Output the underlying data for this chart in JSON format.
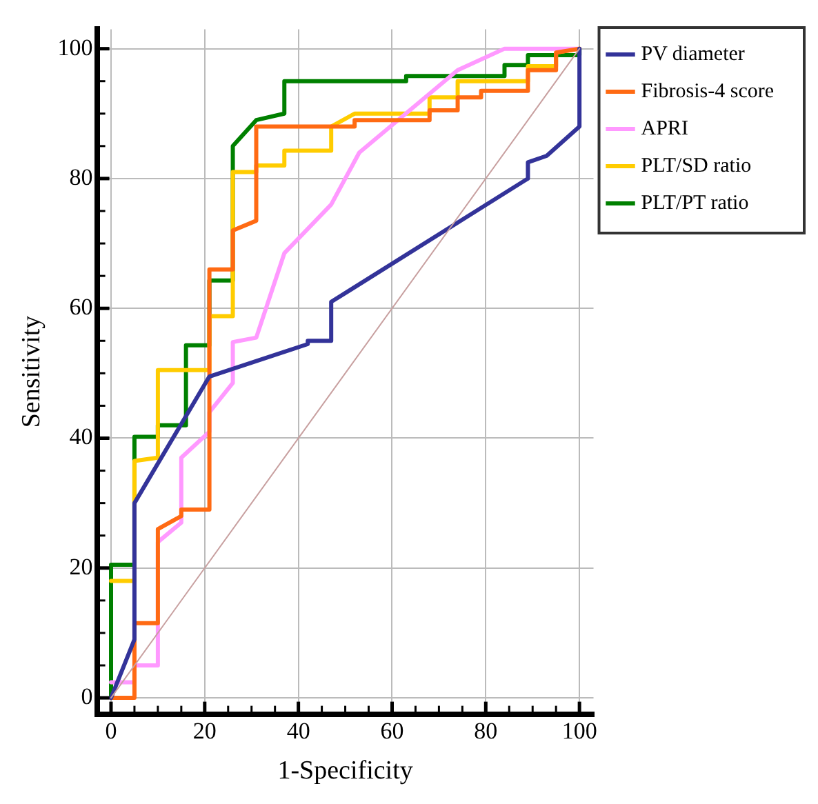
{
  "chart_data": {
    "type": "line",
    "xlabel": "1-Specificity",
    "ylabel": "Sensitivity",
    "xlim": [
      -3,
      103
    ],
    "ylim": [
      -2.5,
      103
    ],
    "xticks": [
      0,
      {
        "value": 5,
        "label": null
      },
      {
        "value": 10,
        "label": null
      },
      {
        "value": 15,
        "label": null
      },
      20,
      {
        "value": 25,
        "label": null
      },
      {
        "value": 30,
        "label": null
      },
      {
        "value": 35,
        "label": null
      },
      40,
      {
        "value": 45,
        "label": null
      },
      {
        "value": 50,
        "label": null
      },
      {
        "value": 55,
        "label": null
      },
      60,
      {
        "value": 65,
        "label": null
      },
      {
        "value": 70,
        "label": null
      },
      {
        "value": 75,
        "label": null
      },
      80,
      {
        "value": 85,
        "label": null
      },
      {
        "value": 90,
        "label": null
      },
      {
        "value": 95,
        "label": null
      },
      100
    ],
    "yticks": [
      0,
      {
        "value": 5,
        "label": null
      },
      {
        "value": 10,
        "label": null
      },
      {
        "value": 15,
        "label": null
      },
      20,
      {
        "value": 25,
        "label": null
      },
      {
        "value": 30,
        "label": null
      },
      {
        "value": 35,
        "label": null
      },
      40,
      {
        "value": 45,
        "label": null
      },
      {
        "value": 50,
        "label": null
      },
      {
        "value": 55,
        "label": null
      },
      60,
      {
        "value": 65,
        "label": null
      },
      {
        "value": 70,
        "label": null
      },
      {
        "value": 75,
        "label": null
      },
      80,
      {
        "value": 85,
        "label": null
      },
      {
        "value": 90,
        "label": null
      },
      {
        "value": 95,
        "label": null
      },
      100
    ],
    "grid": true,
    "legend": "top right",
    "marker": "none",
    "line_style": "solid",
    "series": [
      {
        "color": "#c8a0a0",
        "x": [
          0,
          100
        ],
        "values": [
          0,
          100
        ]
      },
      {
        "name": "PV diameter",
        "color": "#333399",
        "x": [
          0,
          5,
          5,
          21,
          42,
          42,
          47,
          47,
          89,
          89,
          93,
          100,
          100
        ],
        "values": [
          0,
          9,
          30,
          49.5,
          54.5,
          55,
          55,
          61,
          80,
          82.5,
          83.5,
          88,
          100
        ]
      },
      {
        "name": "Fibrosis-4 score",
        "color": "#ff6a13",
        "x": [
          0,
          5,
          5,
          10,
          10,
          15,
          15,
          21,
          21,
          26,
          26,
          31,
          31,
          52,
          52,
          68,
          68,
          74,
          74,
          79,
          79,
          89,
          89,
          95,
          95,
          100
        ],
        "values": [
          0,
          0,
          11.5,
          11.5,
          26,
          28,
          29,
          29,
          66,
          66,
          72,
          73.5,
          88,
          88,
          89,
          89,
          90.5,
          90.5,
          92.5,
          92.5,
          93.5,
          93.5,
          96.7,
          96.7,
          99.4,
          100
        ]
      },
      {
        "name": "APRI",
        "color": "#ff99ff",
        "x": [
          0,
          5,
          5,
          10,
          10,
          15,
          15,
          21,
          21,
          26,
          26,
          31,
          37,
          47,
          53,
          74,
          84,
          100
        ],
        "values": [
          2.4,
          2.4,
          5,
          5,
          24,
          27,
          37,
          41,
          44,
          48.5,
          54.8,
          55.5,
          68.5,
          76,
          84,
          96.7,
          100,
          100
        ]
      },
      {
        "name": "PLT/SD ratio",
        "color": "#ffcc00",
        "x": [
          0,
          5,
          5,
          10,
          10,
          21,
          21,
          26,
          26,
          31,
          31,
          37,
          37,
          47,
          47,
          52,
          68,
          68,
          74,
          74,
          89,
          89,
          95,
          95,
          100
        ],
        "values": [
          18,
          18,
          36.5,
          37,
          50.5,
          50.5,
          58.8,
          58.8,
          81,
          81,
          82,
          82,
          84.3,
          84.3,
          88,
          90,
          90,
          92.5,
          92.5,
          95,
          95,
          97.3,
          97.3,
          99.4,
          100
        ]
      },
      {
        "name": "PLT/PT ratio",
        "color": "#008000",
        "x": [
          0,
          0,
          5,
          5,
          10,
          10,
          16,
          16,
          21,
          21,
          26,
          26,
          31,
          37,
          37,
          63,
          63,
          84,
          84,
          89,
          89,
          100,
          100
        ],
        "values": [
          0,
          20.5,
          20.5,
          40.2,
          40.2,
          42,
          42,
          54.3,
          54.3,
          64.3,
          64.3,
          85,
          89,
          90,
          95,
          95,
          95.8,
          95.8,
          97.5,
          97.5,
          99,
          99,
          100
        ]
      }
    ]
  }
}
